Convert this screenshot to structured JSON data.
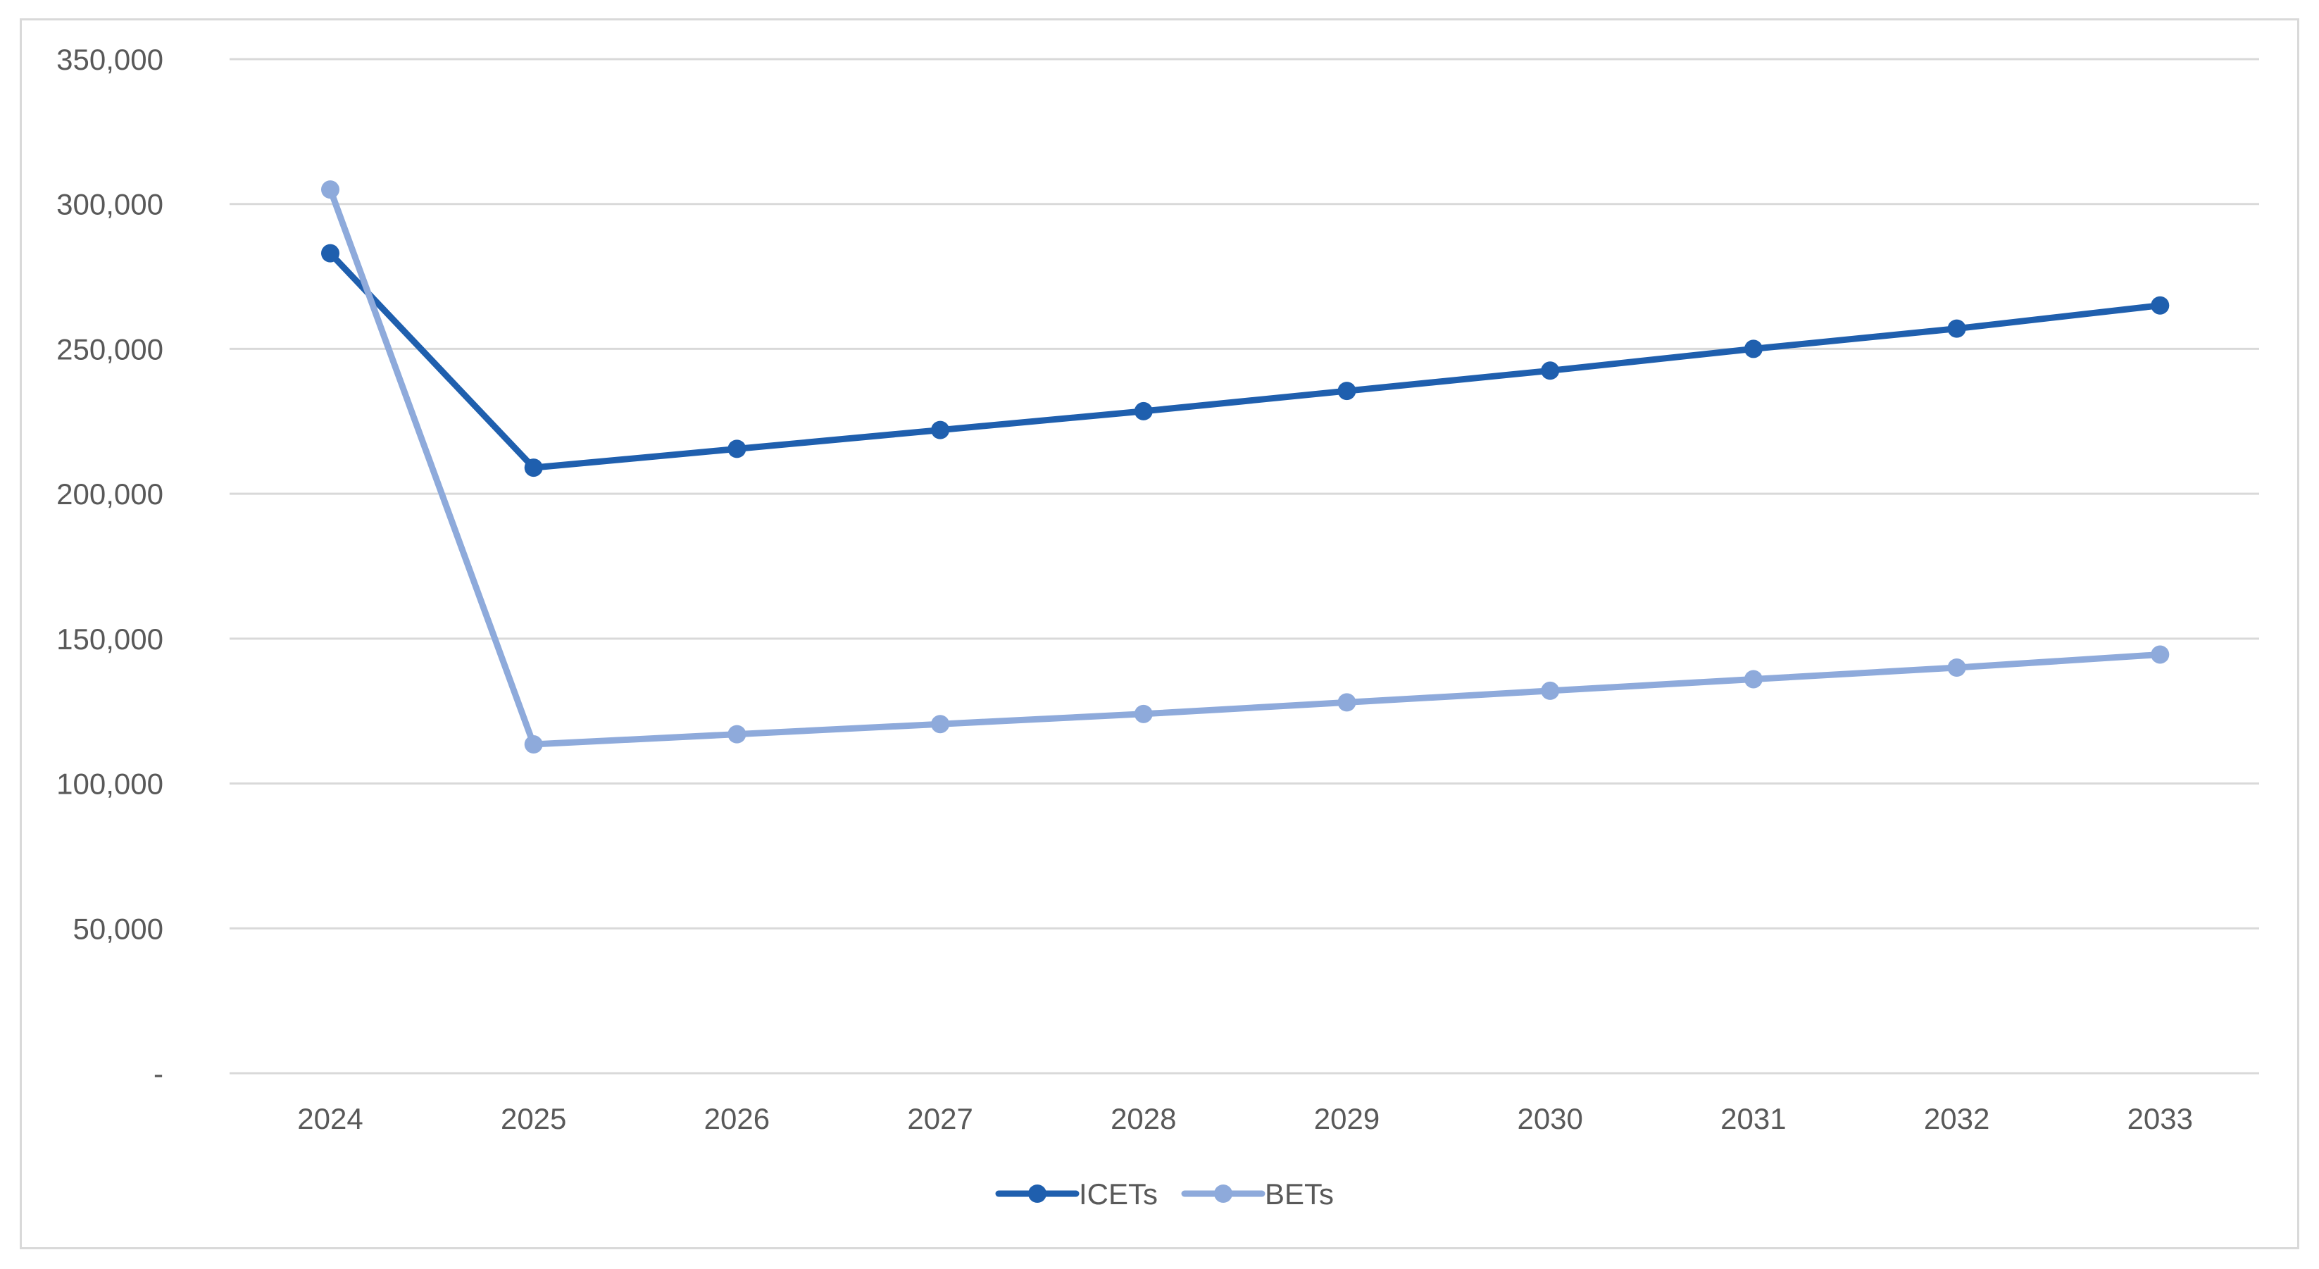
{
  "chart_data": {
    "type": "line",
    "title": "",
    "xlabel": "",
    "ylabel": "",
    "categories": [
      "2024",
      "2025",
      "2026",
      "2027",
      "2028",
      "2029",
      "2030",
      "2031",
      "2032",
      "2033"
    ],
    "ylim": [
      0,
      350000
    ],
    "yticks": [
      0,
      50000,
      100000,
      150000,
      200000,
      250000,
      300000,
      350000
    ],
    "ytick_labels": [
      "-",
      "50,000",
      "100,000",
      "150,000",
      "200,000",
      "250,000",
      "300,000",
      "350,000"
    ],
    "grid": true,
    "legend_position": "bottom",
    "series": [
      {
        "name": "ICETs",
        "color": "#1f5fae",
        "values": [
          283000,
          209000,
          215500,
          222000,
          228500,
          235500,
          242500,
          250000,
          257000,
          265000
        ]
      },
      {
        "name": "BETs",
        "color": "#8eaadb",
        "values": [
          305000,
          113500,
          117000,
          120500,
          124000,
          128000,
          132000,
          136000,
          140000,
          144500
        ]
      }
    ]
  },
  "colors": {
    "gridline": "#d9d9d9",
    "axis_text": "#595959",
    "frame_border": "#d9d9d9"
  }
}
